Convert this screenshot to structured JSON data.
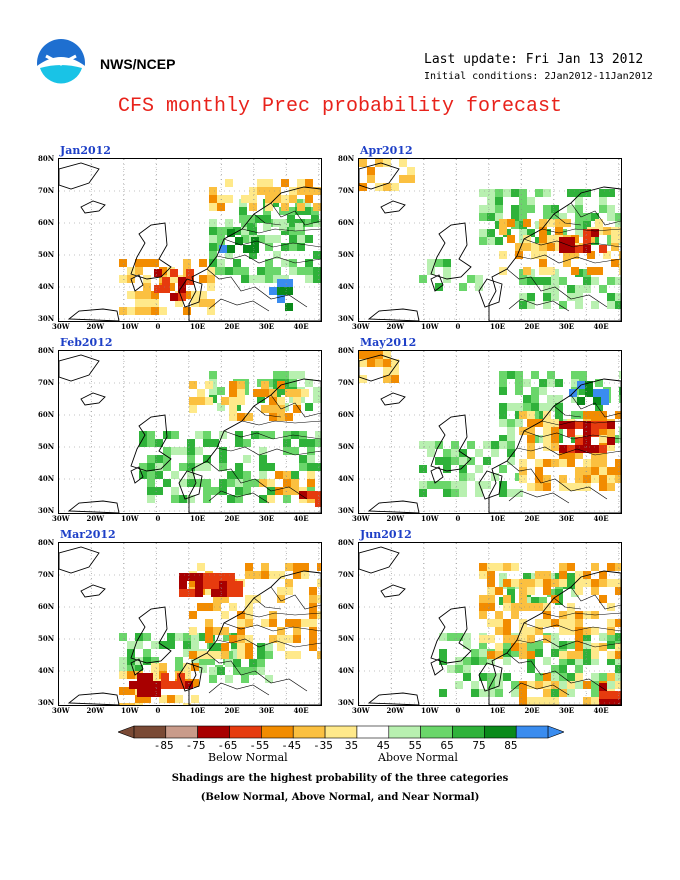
{
  "header": {
    "org": "NWS/NCEP",
    "last_update": "Last update: Fri Jan 13 2012",
    "initial_conditions": "Initial conditions: 2Jan2012-11Jan2012",
    "title": "CFS monthly Prec probability forecast"
  },
  "axes": {
    "lat_labels": [
      "80N",
      "70N",
      "60N",
      "50N",
      "40N",
      "30N"
    ],
    "lon_labels": [
      "30W",
      "20W",
      "10W",
      "0",
      "10E",
      "20E",
      "30E",
      "40E"
    ]
  },
  "panels": [
    {
      "title": "Jan2012",
      "region": "europe",
      "dominant": "mixed above and below normal"
    },
    {
      "title": "Apr2012",
      "region": "europe",
      "dominant": "mixed"
    },
    {
      "title": "Feb2012",
      "region": "europe",
      "dominant": "mostly above normal"
    },
    {
      "title": "May2012",
      "region": "europe",
      "dominant": "above north, below east"
    },
    {
      "title": "Mar2012",
      "region": "europe",
      "dominant": "mostly below normal"
    },
    {
      "title": "Jun2012",
      "region": "europe",
      "dominant": "mostly below normal"
    }
  ],
  "colorbar": {
    "labels": [
      "-85",
      "-75",
      "-65",
      "-55",
      "-45",
      "-35",
      "35",
      "45",
      "55",
      "65",
      "75",
      "85"
    ],
    "colors": [
      "#7a4a35",
      "#c99b8a",
      "#a80000",
      "#e63b0e",
      "#f28c00",
      "#fbc040",
      "#ffe98a",
      "#ffffff",
      "#b8f0b0",
      "#6ad66a",
      "#2fb23a",
      "#0a8a1a",
      "#3a8cef"
    ],
    "below_label": "Below Normal",
    "above_label": "Above Normal"
  },
  "footer": {
    "line1": "Shadings are the highest probability of the three categories",
    "line2": "(Below Normal, Above Normal, and Near Normal)"
  }
}
